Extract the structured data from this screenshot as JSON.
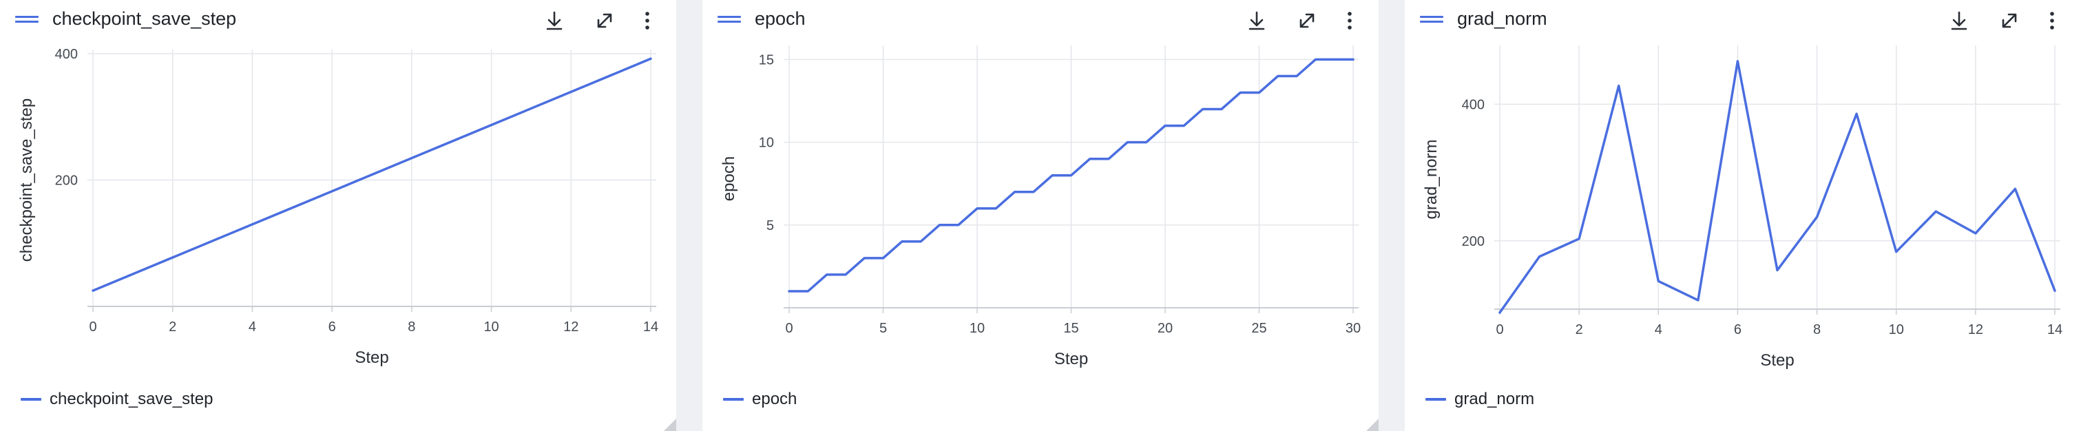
{
  "theme": {
    "line_color": "#4a6ee0",
    "grid_color": "#e4e6ea",
    "axis_color": "#c9cdd3"
  },
  "panels": [
    {
      "title": "checkpoint_save_step",
      "legend_label": "checkpoint_save_step",
      "icons": [
        "download-icon",
        "expand-icon",
        "more-vertical-icon"
      ]
    },
    {
      "title": "epoch",
      "legend_label": "epoch",
      "icons": [
        "download-icon",
        "expand-icon",
        "more-vertical-icon"
      ]
    },
    {
      "title": "grad_norm",
      "legend_label": "grad_norm",
      "icons": [
        "download-icon",
        "expand-icon",
        "more-vertical-icon"
      ]
    }
  ],
  "chart_data": [
    {
      "type": "line",
      "xlabel": "Step",
      "ylabel": "checkpoint_save_step",
      "xlim": [
        0,
        14
      ],
      "ylim": [
        0,
        400
      ],
      "xticks": [
        0,
        2,
        4,
        6,
        8,
        10,
        12,
        14
      ],
      "yticks": [
        200,
        400
      ],
      "grid": true,
      "legend": "bottom-left",
      "series": [
        {
          "name": "checkpoint_save_step",
          "x": [
            0,
            14
          ],
          "y": [
            25,
            392
          ]
        }
      ]
    },
    {
      "type": "line",
      "xlabel": "Step",
      "ylabel": "epoch",
      "xlim": [
        0,
        30
      ],
      "ylim": [
        0,
        15.6
      ],
      "xticks": [
        0,
        5,
        10,
        15,
        20,
        25,
        30
      ],
      "yticks": [
        5,
        10,
        15
      ],
      "grid": true,
      "legend": "bottom-left",
      "series": [
        {
          "name": "epoch",
          "x": [
            0,
            1,
            2,
            3,
            4,
            5,
            6,
            7,
            8,
            9,
            10,
            11,
            12,
            13,
            14,
            15,
            16,
            17,
            18,
            19,
            20,
            21,
            22,
            23,
            24,
            25,
            26,
            27,
            28,
            29,
            30
          ],
          "y": [
            1,
            1,
            2,
            2,
            3,
            3,
            4,
            4,
            5,
            5,
            6,
            6,
            7,
            7,
            8,
            8,
            9,
            9,
            10,
            10,
            11,
            11,
            12,
            12,
            13,
            13,
            14,
            14,
            15,
            15,
            15
          ]
        }
      ]
    },
    {
      "type": "line",
      "xlabel": "Step",
      "ylabel": "grad_norm",
      "xlim": [
        0,
        14
      ],
      "ylim": [
        100,
        480
      ],
      "xticks": [
        0,
        2,
        4,
        6,
        8,
        10,
        12,
        14
      ],
      "yticks": [
        200,
        400
      ],
      "grid": true,
      "legend": "bottom-left",
      "series": [
        {
          "name": "grad_norm",
          "x": [
            0,
            1,
            2,
            3,
            4,
            5,
            6,
            7,
            8,
            9,
            10,
            11,
            12,
            13,
            14
          ],
          "y": [
            95,
            177,
            203,
            427,
            141,
            113,
            463,
            157,
            235,
            386,
            184,
            243,
            211,
            276,
            127
          ]
        }
      ]
    }
  ]
}
